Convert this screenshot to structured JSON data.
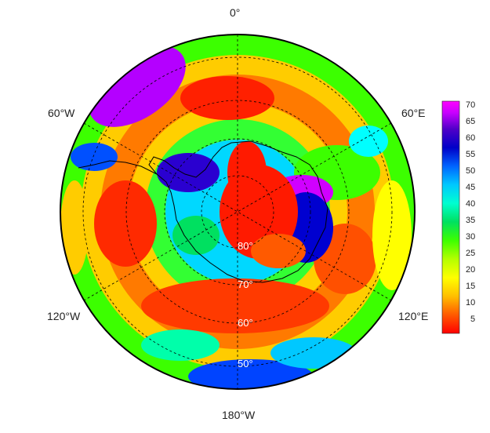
{
  "map": {
    "projection": "south-polar-stereographic",
    "longitude_labels": {
      "top": "0°",
      "upper_left": "60°W",
      "upper_right": "60°E",
      "lower_left": "120°W",
      "lower_right": "120°E",
      "bottom": "180°W"
    },
    "latitude_labels": [
      "80°",
      "70°",
      "60°",
      "50°"
    ],
    "colorbar": {
      "ticks": [
        "70",
        "65",
        "60",
        "55",
        "50",
        "45",
        "40",
        "35",
        "30",
        "25",
        "20",
        "15",
        "10",
        "5"
      ],
      "min": 0,
      "max": 73,
      "colors": [
        "#ff0000",
        "#ff6600",
        "#ffcc00",
        "#ffff00",
        "#aaff00",
        "#33ff00",
        "#00e066",
        "#00ffcc",
        "#00ccff",
        "#0066ff",
        "#0000cc",
        "#6600cc",
        "#cc00ff",
        "#ff00ff"
      ]
    }
  }
}
